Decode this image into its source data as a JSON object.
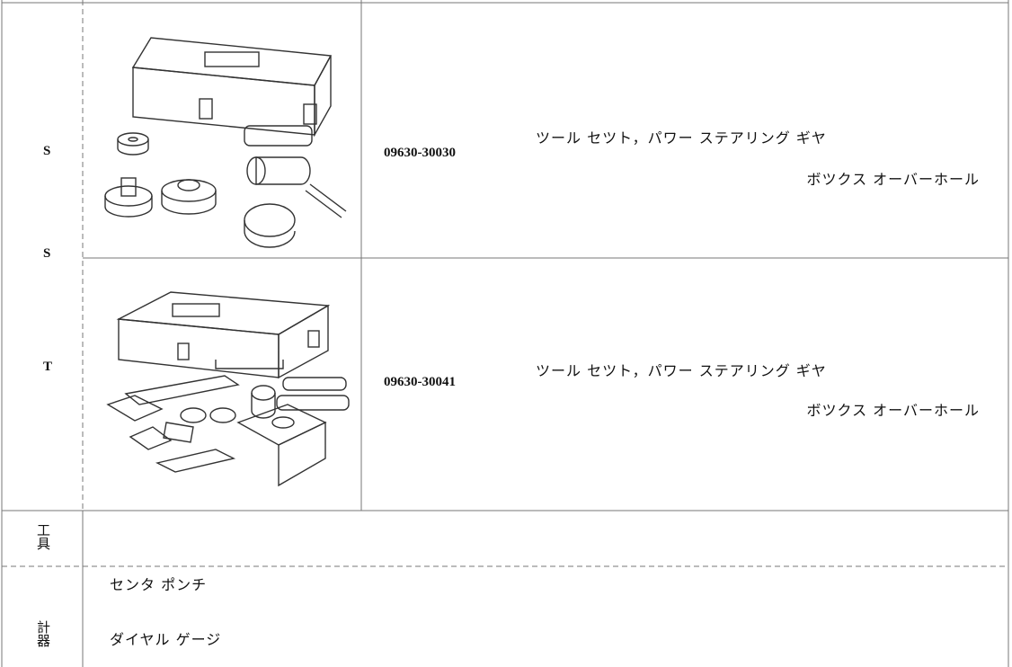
{
  "sst": {
    "labels": [
      "S",
      "S",
      "T"
    ],
    "rows": [
      {
        "part_number": "09630-30030",
        "name": [
          "ツール セツト，パワー ステアリング ギヤ",
          "ボツクス オーバーホール"
        ]
      },
      {
        "part_number": "09630-30041",
        "name": [
          "ツール セツト，パワー ステアリング ギヤ",
          "ボツクス オーバーホール"
        ]
      }
    ]
  },
  "tools": {
    "label": "工具",
    "item": "センタ ポンチ"
  },
  "gauges": {
    "label": "計器",
    "item": "ダイヤル ゲージ"
  }
}
